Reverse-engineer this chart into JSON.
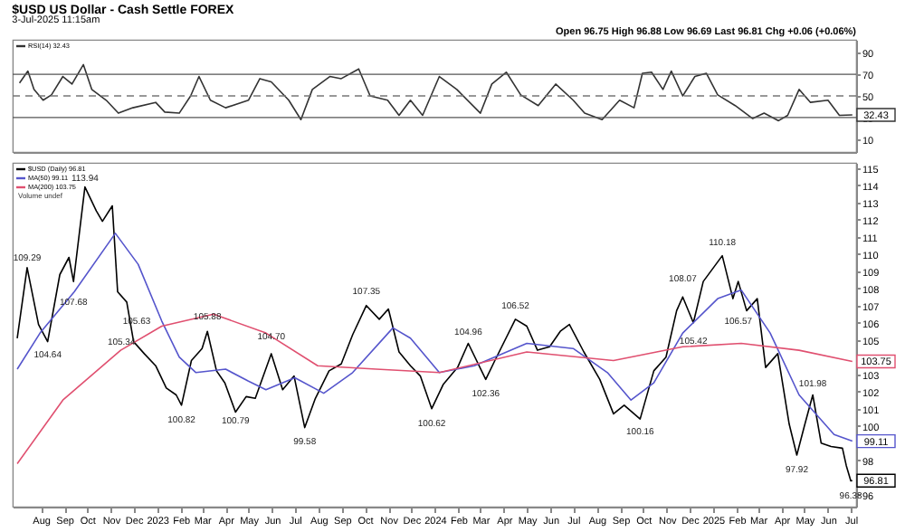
{
  "chart_data": [
    {
      "type": "line",
      "title": "$USD US Dollar - Cash Settle FOREX",
      "subtitle": "3-Jul-2025 11:15am",
      "annotations": [
        "Open 96.75 High 96.88 Low 96.69 Last 96.81 Chg +0.06 (+0.06%)"
      ],
      "xlim": [
        "2022-06-25",
        "2025-07-08"
      ],
      "ylim": [
        -2,
        102
      ],
      "yticks": [
        10,
        30,
        50,
        70,
        90
      ],
      "tick_labels": "y",
      "legend": "top left",
      "ref_lines": [
        {
          "axis": "y",
          "value": 70,
          "color": "#555555",
          "line_style": "solid"
        },
        {
          "axis": "y",
          "value": 50,
          "color": "#777777",
          "line_style": "dashed"
        },
        {
          "axis": "y",
          "value": 30,
          "color": "#555555",
          "line_style": "solid"
        }
      ],
      "series": [
        {
          "name": "RSI(14) 32.43",
          "color": "#333333",
          "x": [
            "2022-07-04",
            "2022-07-15",
            "2022-07-23",
            "2022-08-04",
            "2022-08-15",
            "2022-08-30",
            "2022-09-11",
            "2022-09-26",
            "2022-10-07",
            "2022-10-26",
            "2022-11-11",
            "2022-11-30",
            "2022-12-30",
            "2023-01-11",
            "2023-01-30",
            "2023-02-14",
            "2023-02-25",
            "2023-03-12",
            "2023-04-01",
            "2023-05-01",
            "2023-05-16",
            "2023-05-31",
            "2023-06-23",
            "2023-07-09",
            "2023-07-24",
            "2023-08-16",
            "2023-08-31",
            "2023-09-23",
            "2023-10-08",
            "2023-10-31",
            "2023-11-15",
            "2023-11-30",
            "2023-12-16",
            "2024-01-07",
            "2024-01-30",
            "2024-03-01",
            "2024-03-16",
            "2024-04-04",
            "2024-04-23",
            "2024-05-16",
            "2024-06-08",
            "2024-07-01",
            "2024-07-16",
            "2024-08-08",
            "2024-08-31",
            "2024-09-19",
            "2024-09-30",
            "2024-10-12",
            "2024-10-27",
            "2024-11-07",
            "2024-11-22",
            "2024-12-08",
            "2024-12-23",
            "2025-01-07",
            "2025-01-30",
            "2025-02-22",
            "2025-03-09",
            "2025-03-28",
            "2025-04-09",
            "2025-04-24",
            "2025-05-09",
            "2025-06-01",
            "2025-06-16",
            "2025-07-03"
          ],
          "values": [
            62,
            73,
            56,
            46,
            51,
            68,
            61,
            79,
            56,
            46,
            34,
            39,
            44,
            35,
            34,
            50,
            68,
            46,
            39,
            46,
            66,
            63,
            46,
            28,
            56,
            68,
            66,
            75,
            50,
            46,
            32,
            46,
            32,
            68,
            56,
            34,
            61,
            72,
            51,
            41,
            61,
            46,
            34,
            28,
            46,
            39,
            71,
            72,
            56,
            73,
            50,
            68,
            71,
            51,
            41,
            29,
            34,
            27,
            32,
            56,
            44,
            46,
            32,
            32.43
          ],
          "value_labels": [
            null,
            null,
            null,
            null,
            null,
            null,
            null,
            null,
            null,
            null,
            null,
            null,
            null,
            null,
            null,
            null,
            null,
            null,
            null,
            null,
            null,
            null,
            null,
            null,
            null,
            null,
            null,
            null,
            null,
            null,
            null,
            null,
            null,
            null,
            null,
            null,
            null,
            null,
            null,
            null,
            null,
            null,
            null,
            null,
            null,
            null,
            null,
            null,
            null,
            null,
            null,
            null,
            null,
            null,
            null,
            null,
            null,
            null,
            null,
            null,
            null,
            null,
            null,
            "32.43"
          ]
        }
      ]
    },
    {
      "type": "line",
      "xlim": [
        "2022-06-25",
        "2025-07-08"
      ],
      "ylim": [
        95.3,
        115.3
      ],
      "yticks": [
        96,
        {
          "value": 97,
          "label": null
        },
        98,
        {
          "value": 99,
          "label": null
        },
        100,
        101,
        102,
        103,
        {
          "value": 104,
          "label": null
        },
        105,
        106,
        107,
        108,
        109,
        110,
        111,
        112,
        113,
        114,
        115
      ],
      "legend": "top left",
      "xticks": [
        {
          "value": "2022-08-01",
          "label": "Aug"
        },
        {
          "value": "2022-09-01",
          "label": "Sep"
        },
        {
          "value": "2022-10-01",
          "label": "Oct"
        },
        {
          "value": "2022-11-01",
          "label": "Nov"
        },
        {
          "value": "2022-12-01",
          "label": "Dec"
        },
        {
          "value": "2023-01-01",
          "label": "2023"
        },
        {
          "value": "2023-02-01",
          "label": "Feb"
        },
        {
          "value": "2023-03-01",
          "label": "Mar"
        },
        {
          "value": "2023-04-01",
          "label": "Apr"
        },
        {
          "value": "2023-05-01",
          "label": "May"
        },
        {
          "value": "2023-06-01",
          "label": "Jun"
        },
        {
          "value": "2023-07-01",
          "label": "Jul"
        },
        {
          "value": "2023-08-01",
          "label": "Aug"
        },
        {
          "value": "2023-09-01",
          "label": "Sep"
        },
        {
          "value": "2023-10-01",
          "label": "Oct"
        },
        {
          "value": "2023-11-01",
          "label": "Nov"
        },
        {
          "value": "2023-12-01",
          "label": "Dec"
        },
        {
          "value": "2024-01-01",
          "label": "2024"
        },
        {
          "value": "2024-02-01",
          "label": "Feb"
        },
        {
          "value": "2024-03-01",
          "label": "Mar"
        },
        {
          "value": "2024-04-01",
          "label": "Apr"
        },
        {
          "value": "2024-05-01",
          "label": "May"
        },
        {
          "value": "2024-06-01",
          "label": "Jun"
        },
        {
          "value": "2024-07-01",
          "label": "Jul"
        },
        {
          "value": "2024-08-01",
          "label": "Aug"
        },
        {
          "value": "2024-09-01",
          "label": "Sep"
        },
        {
          "value": "2024-10-01",
          "label": "Oct"
        },
        {
          "value": "2024-11-01",
          "label": "Nov"
        },
        {
          "value": "2024-12-01",
          "label": "Dec"
        },
        {
          "value": "2025-01-01",
          "label": "2025"
        },
        {
          "value": "2025-02-01",
          "label": "Feb"
        },
        {
          "value": "2025-03-01",
          "label": "Mar"
        },
        {
          "value": "2025-04-01",
          "label": "Apr"
        },
        {
          "value": "2025-05-01",
          "label": "May"
        },
        {
          "value": "2025-06-01",
          "label": "Jun"
        },
        {
          "value": "2025-07-01",
          "label": "Jul"
        }
      ],
      "annotations": [
        "Volume undef",
        {
          "text": "109.29",
          "x": "2022-07-14",
          "y": 109.29
        },
        {
          "text": "104.64",
          "x": "2022-08-10",
          "y": 104.64
        },
        {
          "text": "107.68",
          "x": "2022-09-13",
          "y": 107.68
        },
        {
          "text": "113.94",
          "x": "2022-09-28",
          "y": 113.94
        },
        {
          "text": "105.34",
          "x": "2022-11-15",
          "y": 105.34
        },
        {
          "text": "105.63",
          "x": "2022-12-05",
          "y": 105.63
        },
        {
          "text": "100.82",
          "x": "2023-02-02",
          "y": 100.82
        },
        {
          "text": "105.88",
          "x": "2023-03-08",
          "y": 105.88
        },
        {
          "text": "100.79",
          "x": "2023-04-14",
          "y": 100.79
        },
        {
          "text": "104.70",
          "x": "2023-05-31",
          "y": 104.7
        },
        {
          "text": "99.58",
          "x": "2023-07-14",
          "y": 99.58
        },
        {
          "text": "107.35",
          "x": "2023-10-03",
          "y": 107.35
        },
        {
          "text": "100.62",
          "x": "2023-12-28",
          "y": 100.62
        },
        {
          "text": "104.96",
          "x": "2024-02-14",
          "y": 104.96
        },
        {
          "text": "102.36",
          "x": "2024-03-08",
          "y": 102.36
        },
        {
          "text": "106.52",
          "x": "2024-04-16",
          "y": 106.52
        },
        {
          "text": "100.16",
          "x": "2024-09-27",
          "y": 100.16
        },
        {
          "text": "108.07",
          "x": "2024-11-22",
          "y": 108.07
        },
        {
          "text": "105.42",
          "x": "2024-12-06",
          "y": 105.42
        },
        {
          "text": "110.18",
          "x": "2025-01-13",
          "y": 110.18
        },
        {
          "text": "106.57",
          "x": "2025-02-03",
          "y": 106.57
        },
        {
          "text": "97.92",
          "x": "2025-04-21",
          "y": 97.92
        },
        {
          "text": "101.98",
          "x": "2025-05-12",
          "y": 101.98
        },
        {
          "text": "96.38",
          "x": "2025-07-01",
          "y": 96.38
        }
      ],
      "series": [
        {
          "name": "$USD (Daily) 96.81",
          "color": "#000000",
          "x": [
            "2022-07-01",
            "2022-07-14",
            "2022-07-29",
            "2022-08-10",
            "2022-08-26",
            "2022-09-07",
            "2022-09-13",
            "2022-09-28",
            "2022-10-13",
            "2022-10-21",
            "2022-11-03",
            "2022-11-10",
            "2022-11-22",
            "2022-12-01",
            "2022-12-15",
            "2022-12-30",
            "2023-01-13",
            "2023-01-26",
            "2023-02-02",
            "2023-02-15",
            "2023-03-01",
            "2023-03-08",
            "2023-03-20",
            "2023-03-31",
            "2023-04-14",
            "2023-04-28",
            "2023-05-10",
            "2023-05-31",
            "2023-06-15",
            "2023-06-30",
            "2023-07-14",
            "2023-07-28",
            "2023-08-15",
            "2023-08-31",
            "2023-09-15",
            "2023-10-03",
            "2023-10-20",
            "2023-11-01",
            "2023-11-15",
            "2023-11-30",
            "2023-12-13",
            "2023-12-28",
            "2024-01-12",
            "2024-01-31",
            "2024-02-14",
            "2024-03-08",
            "2024-03-20",
            "2024-04-16",
            "2024-05-01",
            "2024-05-15",
            "2024-05-31",
            "2024-06-14",
            "2024-06-26",
            "2024-07-15",
            "2024-08-05",
            "2024-08-23",
            "2024-09-06",
            "2024-09-27",
            "2024-10-15",
            "2024-10-31",
            "2024-11-14",
            "2024-11-22",
            "2024-12-06",
            "2024-12-19",
            "2025-01-13",
            "2025-01-27",
            "2025-02-03",
            "2025-02-14",
            "2025-02-28",
            "2025-03-11",
            "2025-03-27",
            "2025-04-11",
            "2025-04-21",
            "2025-05-01",
            "2025-05-12",
            "2025-05-23",
            "2025-06-05",
            "2025-06-20",
            "2025-06-25",
            "2025-07-01",
            "2025-07-03"
          ],
          "values": [
            105.1,
            109.2,
            105.9,
            104.9,
            108.8,
            109.8,
            108.4,
            113.9,
            112.5,
            111.9,
            112.8,
            107.8,
            107.2,
            104.9,
            104.2,
            103.5,
            102.2,
            101.8,
            101.2,
            103.8,
            104.5,
            105.5,
            103.2,
            102.5,
            100.8,
            101.7,
            101.6,
            104.2,
            102.1,
            102.9,
            99.9,
            101.6,
            103.2,
            103.6,
            105.3,
            107.0,
            106.2,
            106.8,
            104.3,
            103.5,
            102.9,
            101.0,
            102.4,
            103.4,
            104.8,
            102.7,
            103.8,
            106.2,
            105.8,
            104.4,
            104.6,
            105.5,
            105.9,
            104.3,
            102.7,
            100.7,
            101.2,
            100.4,
            103.2,
            104.0,
            106.7,
            107.5,
            106.0,
            108.4,
            109.9,
            107.4,
            108.4,
            106.7,
            107.4,
            103.4,
            104.2,
            100.1,
            98.3,
            100.0,
            101.8,
            99.0,
            98.8,
            98.7,
            97.7,
            96.8,
            96.81
          ],
          "value_labels": [
            null,
            null,
            null,
            null,
            null,
            null,
            null,
            null,
            null,
            null,
            null,
            null,
            null,
            null,
            null,
            null,
            null,
            null,
            null,
            null,
            null,
            null,
            null,
            null,
            null,
            null,
            null,
            null,
            null,
            null,
            null,
            null,
            null,
            null,
            null,
            null,
            null,
            null,
            null,
            null,
            null,
            null,
            null,
            null,
            null,
            null,
            null,
            null,
            null,
            null,
            null,
            null,
            null,
            null,
            null,
            null,
            null,
            null,
            null,
            null,
            null,
            null,
            null,
            null,
            null,
            null,
            null,
            null,
            null,
            null,
            null,
            null,
            null,
            null,
            null,
            null,
            null,
            null,
            null,
            null,
            "96.81"
          ]
        },
        {
          "name": "MA(50) 99.11",
          "color": "#5555cc",
          "x": [
            "2022-07-01",
            "2022-07-31",
            "2022-09-14",
            "2022-11-07",
            "2022-12-07",
            "2023-01-07",
            "2023-01-30",
            "2023-02-21",
            "2023-04-01",
            "2023-05-01",
            "2023-05-24",
            "2023-07-01",
            "2023-08-08",
            "2023-09-15",
            "2023-11-07",
            "2023-11-30",
            "2024-01-07",
            "2024-02-22",
            "2024-05-01",
            "2024-07-01",
            "2024-08-15",
            "2024-09-15",
            "2024-10-15",
            "2024-11-22",
            "2025-01-07",
            "2025-02-07",
            "2025-03-17",
            "2025-04-24",
            "2025-06-09",
            "2025-07-03"
          ],
          "values": [
            103.3,
            105.4,
            107.8,
            111.2,
            109.4,
            106.1,
            104.0,
            103.1,
            103.3,
            102.6,
            102.1,
            102.8,
            101.9,
            103.1,
            105.7,
            105.1,
            103.1,
            103.5,
            104.8,
            104.5,
            103.1,
            101.5,
            102.5,
            105.4,
            107.4,
            107.9,
            105.4,
            101.8,
            99.5,
            99.11
          ],
          "value_labels": [
            null,
            null,
            null,
            null,
            null,
            null,
            null,
            null,
            null,
            null,
            null,
            null,
            null,
            null,
            null,
            null,
            null,
            null,
            null,
            null,
            null,
            null,
            null,
            null,
            null,
            null,
            null,
            null,
            null,
            "99.11"
          ]
        },
        {
          "name": "MA(200) 103.75",
          "color": "#e05070",
          "x": [
            "2022-07-01",
            "2022-08-30",
            "2022-11-14",
            "2023-01-07",
            "2023-03-16",
            "2023-05-24",
            "2023-07-31",
            "2023-10-16",
            "2024-01-07",
            "2024-05-01",
            "2024-08-23",
            "2024-11-22",
            "2025-02-07",
            "2025-04-24",
            "2025-07-03"
          ],
          "values": [
            97.8,
            101.5,
            104.4,
            105.8,
            106.5,
            105.4,
            103.5,
            103.3,
            103.1,
            104.3,
            103.8,
            104.6,
            104.8,
            104.4,
            103.75
          ],
          "value_labels": [
            null,
            null,
            null,
            null,
            null,
            null,
            null,
            null,
            null,
            null,
            null,
            null,
            null,
            null,
            "103.75"
          ]
        }
      ]
    }
  ]
}
